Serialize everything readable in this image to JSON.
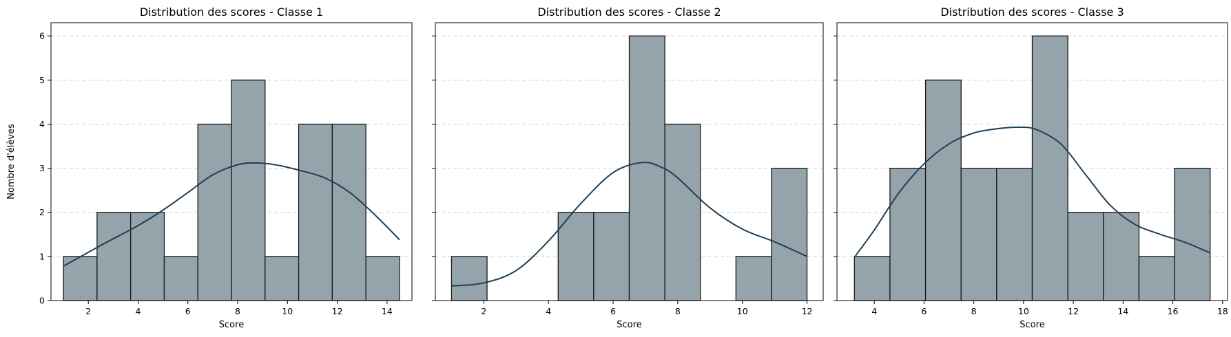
{
  "colors": {
    "bar_fill": "#95a3ab",
    "kde_line": "#1f3f55"
  },
  "chart_data": [
    {
      "type": "bar",
      "title": "Distribution des scores - Classe 1",
      "xlabel": "Score",
      "ylabel": "Nombre d'élèves",
      "xlim": [
        0.5,
        15.0
      ],
      "ylim": [
        0,
        6.3
      ],
      "xticks": [
        2,
        4,
        6,
        8,
        10,
        12,
        14
      ],
      "yticks": [
        0,
        1,
        2,
        3,
        4,
        5,
        6
      ],
      "grid": "y",
      "bin_edges": [
        1.0,
        2.35,
        3.7,
        5.05,
        6.4,
        7.75,
        9.1,
        10.45,
        11.8,
        13.15,
        14.5
      ],
      "values": [
        1,
        2,
        2,
        1,
        4,
        5,
        1,
        4,
        4,
        1
      ],
      "kde": {
        "x": [
          1.0,
          2.5,
          4.0,
          5.0,
          6.0,
          7.0,
          8.0,
          8.7,
          9.5,
          10.5,
          11.5,
          12.5,
          13.5,
          14.5
        ],
        "y": [
          0.78,
          1.25,
          1.7,
          2.05,
          2.45,
          2.85,
          3.08,
          3.12,
          3.08,
          2.95,
          2.78,
          2.45,
          1.95,
          1.38
        ]
      }
    },
    {
      "type": "bar",
      "title": "Distribution des scores - Classe 2",
      "xlabel": "Score",
      "ylabel": "",
      "xlim": [
        0.5,
        12.5
      ],
      "ylim": [
        0,
        6.3
      ],
      "xticks": [
        2,
        4,
        6,
        8,
        10,
        12
      ],
      "yticks": [
        0,
        1,
        2,
        3,
        4,
        5,
        6
      ],
      "grid": "y",
      "bin_edges": [
        1.0,
        2.1,
        3.2,
        4.3,
        5.4,
        6.5,
        7.6,
        8.7,
        9.8,
        10.9,
        12.0
      ],
      "values": [
        1,
        0,
        0,
        2,
        2,
        6,
        4,
        0,
        1,
        3
      ],
      "kde": {
        "x": [
          1.0,
          2.0,
          3.0,
          4.0,
          5.0,
          6.0,
          6.9,
          7.5,
          8.0,
          9.0,
          10.0,
          11.0,
          12.0
        ],
        "y": [
          0.33,
          0.4,
          0.68,
          1.35,
          2.2,
          2.9,
          3.13,
          3.02,
          2.78,
          2.1,
          1.62,
          1.33,
          1.0
        ]
      }
    },
    {
      "type": "bar",
      "title": "Distribution des scores - Classe 3",
      "xlabel": "Score",
      "ylabel": "",
      "xlim": [
        2.5,
        18.2
      ],
      "ylim": [
        0,
        6.3
      ],
      "xticks": [
        4,
        6,
        8,
        10,
        12,
        14,
        16,
        18
      ],
      "yticks": [
        0,
        1,
        2,
        3,
        4,
        5,
        6
      ],
      "grid": "y",
      "bin_edges": [
        3.2,
        4.63,
        6.06,
        7.49,
        8.92,
        10.35,
        11.78,
        13.21,
        14.64,
        16.07,
        17.5
      ],
      "values": [
        1,
        3,
        5,
        3,
        3,
        6,
        2,
        2,
        1,
        3
      ],
      "kde": {
        "x": [
          3.2,
          4.0,
          5.0,
          6.0,
          7.0,
          8.0,
          9.0,
          9.8,
          10.5,
          11.5,
          12.5,
          13.5,
          14.5,
          15.5,
          16.5,
          17.5
        ],
        "y": [
          0.98,
          1.6,
          2.45,
          3.1,
          3.55,
          3.8,
          3.9,
          3.93,
          3.88,
          3.55,
          2.85,
          2.15,
          1.72,
          1.5,
          1.32,
          1.08
        ]
      }
    }
  ]
}
